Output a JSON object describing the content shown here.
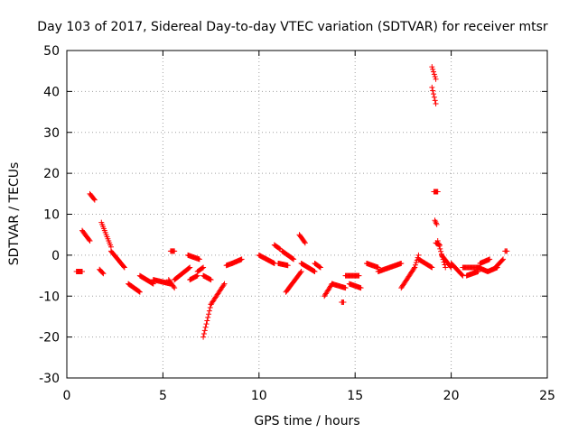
{
  "chart_data": {
    "type": "scatter",
    "title": "Day 103 of 2017, Sidereal Day-to-day VTEC variation (SDTVAR) for receiver mtsr",
    "xlabel": "GPS time / hours",
    "ylabel": "SDTVAR / TECUs",
    "xlim": [
      0,
      25
    ],
    "ylim": [
      -30,
      50
    ],
    "xticks": [
      0,
      5,
      10,
      15,
      20,
      25
    ],
    "yticks": [
      -30,
      -20,
      -10,
      0,
      10,
      20,
      30,
      40,
      50
    ],
    "xtick_labels": [
      "0",
      "5",
      "10",
      "15",
      "20",
      "25"
    ],
    "ytick_labels": [
      "-30",
      "-20",
      "-10",
      "0",
      "10",
      "20",
      "30",
      "40",
      "50"
    ],
    "grid": true,
    "marker": "+",
    "color": "#ff0000",
    "segments": [
      {
        "x0": 0.5,
        "x1": 0.8,
        "y0": -4,
        "y1": -4
      },
      {
        "x0": 0.8,
        "x1": 1.2,
        "y0": 6,
        "y1": 3.5
      },
      {
        "x0": 1.2,
        "x1": 1.45,
        "y0": 15,
        "y1": 13.5
      },
      {
        "x0": 1.7,
        "x1": 1.9,
        "y0": -3.5,
        "y1": -4.5
      },
      {
        "x0": 1.8,
        "x1": 2.3,
        "y0": 8,
        "y1": 2
      },
      {
        "x0": 2.3,
        "x1": 3.0,
        "y0": 1,
        "y1": -3
      },
      {
        "x0": 3.2,
        "x1": 3.8,
        "y0": -7,
        "y1": -9
      },
      {
        "x0": 3.8,
        "x1": 4.5,
        "y0": -5,
        "y1": -7
      },
      {
        "x0": 4.5,
        "x1": 5.4,
        "y0": -6,
        "y1": -7
      },
      {
        "x0": 5.4,
        "x1": 5.6,
        "y0": 1,
        "y1": 1
      },
      {
        "x0": 5.3,
        "x1": 5.6,
        "y0": -6,
        "y1": -8
      },
      {
        "x0": 5.6,
        "x1": 6.4,
        "y0": -6,
        "y1": -3
      },
      {
        "x0": 6.3,
        "x1": 6.9,
        "y0": 0,
        "y1": -1
      },
      {
        "x0": 6.4,
        "x1": 6.8,
        "y0": -6,
        "y1": -5
      },
      {
        "x0": 6.8,
        "x1": 7.1,
        "y0": -4,
        "y1": -3
      },
      {
        "x0": 7.1,
        "x1": 7.5,
        "y0": -20,
        "y1": -12
      },
      {
        "x0": 7.5,
        "x1": 8.2,
        "y0": -12,
        "y1": -7
      },
      {
        "x0": 7.1,
        "x1": 7.5,
        "y0": -5,
        "y1": -6
      },
      {
        "x0": 8.3,
        "x1": 8.6,
        "y0": -2.5,
        "y1": -2
      },
      {
        "x0": 8.6,
        "x1": 9.1,
        "y0": -2,
        "y1": -1
      },
      {
        "x0": 10.0,
        "x1": 10.8,
        "y0": 0,
        "y1": -2
      },
      {
        "x0": 10.8,
        "x1": 11.1,
        "y0": 2.5,
        "y1": 1.5
      },
      {
        "x0": 11.0,
        "x1": 11.5,
        "y0": -2,
        "y1": -2.5
      },
      {
        "x0": 11.2,
        "x1": 11.8,
        "y0": 1,
        "y1": -1
      },
      {
        "x0": 11.4,
        "x1": 12.2,
        "y0": -9,
        "y1": -4
      },
      {
        "x0": 12.1,
        "x1": 12.4,
        "y0": 5,
        "y1": 3
      },
      {
        "x0": 12.2,
        "x1": 12.9,
        "y0": -2,
        "y1": -4
      },
      {
        "x0": 12.9,
        "x1": 13.2,
        "y0": -2,
        "y1": -3
      },
      {
        "x0": 13.4,
        "x1": 13.8,
        "y0": -10,
        "y1": -7
      },
      {
        "x0": 13.8,
        "x1": 14.5,
        "y0": -7,
        "y1": -8
      },
      {
        "x0": 14.3,
        "x1": 14.4,
        "y0": -11.5,
        "y1": -11.5
      },
      {
        "x0": 14.5,
        "x1": 15.2,
        "y0": -5,
        "y1": -5
      },
      {
        "x0": 14.7,
        "x1": 15.3,
        "y0": -7,
        "y1": -8
      },
      {
        "x0": 15.6,
        "x1": 16.2,
        "y0": -2,
        "y1": -3
      },
      {
        "x0": 16.2,
        "x1": 17.4,
        "y0": -4,
        "y1": -2
      },
      {
        "x0": 17.4,
        "x1": 18.1,
        "y0": -8,
        "y1": -3
      },
      {
        "x0": 18.1,
        "x1": 18.3,
        "y0": -3,
        "y1": 0
      },
      {
        "x0": 18.3,
        "x1": 19.0,
        "y0": -1,
        "y1": -3
      },
      {
        "x0": 19.0,
        "x1": 19.2,
        "y0": 46,
        "y1": 43
      },
      {
        "x0": 19.0,
        "x1": 19.2,
        "y0": 41,
        "y1": 37
      },
      {
        "x0": 19.1,
        "x1": 19.3,
        "y0": 15.5,
        "y1": 15.5
      },
      {
        "x0": 19.15,
        "x1": 19.25,
        "y0": 8.5,
        "y1": 7.5
      },
      {
        "x0": 19.2,
        "x1": 19.4,
        "y0": 3,
        "y1": 2.5
      },
      {
        "x0": 19.3,
        "x1": 19.7,
        "y0": 3.5,
        "y1": -3
      },
      {
        "x0": 19.5,
        "x1": 20.0,
        "y0": 0,
        "y1": -3
      },
      {
        "x0": 20.0,
        "x1": 20.6,
        "y0": -2,
        "y1": -5
      },
      {
        "x0": 20.6,
        "x1": 21.5,
        "y0": -3,
        "y1": -3
      },
      {
        "x0": 20.8,
        "x1": 21.4,
        "y0": -5,
        "y1": -4
      },
      {
        "x0": 21.4,
        "x1": 21.9,
        "y0": -3,
        "y1": -4
      },
      {
        "x0": 21.5,
        "x1": 22.0,
        "y0": -2,
        "y1": -1
      },
      {
        "x0": 21.9,
        "x1": 22.4,
        "y0": -4,
        "y1": -3
      },
      {
        "x0": 22.3,
        "x1": 22.7,
        "y0": -3,
        "y1": -1
      },
      {
        "x0": 22.8,
        "x1": 22.9,
        "y0": 1,
        "y1": 1
      }
    ]
  }
}
